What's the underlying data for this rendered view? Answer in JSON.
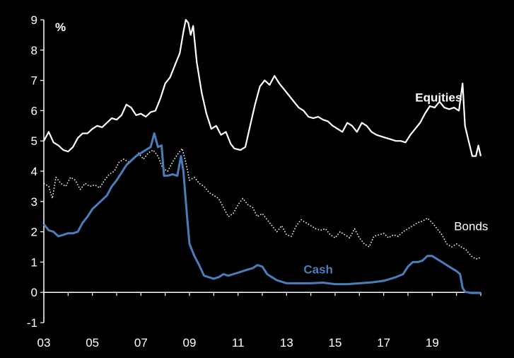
{
  "chart_data": {
    "type": "line",
    "title": "",
    "unit_label": "%",
    "xlabel": "",
    "ylabel": "",
    "xlim": [
      2003,
      2021.0
    ],
    "ylim": [
      -1,
      9
    ],
    "y_ticks": [
      "-1",
      "0",
      "1",
      "2",
      "3",
      "4",
      "5",
      "6",
      "7",
      "8",
      "9"
    ],
    "x_ticks": [
      {
        "year": 2003,
        "label": "03"
      },
      {
        "year": 2005,
        "label": "05"
      },
      {
        "year": 2007,
        "label": "07"
      },
      {
        "year": 2009,
        "label": "09"
      },
      {
        "year": 2011,
        "label": "11"
      },
      {
        "year": 2013,
        "label": "13"
      },
      {
        "year": 2015,
        "label": "15"
      },
      {
        "year": 2017,
        "label": "17"
      },
      {
        "year": 2019,
        "label": "19"
      }
    ],
    "grid": false,
    "series": [
      {
        "name": "Equities",
        "color": "#ffffff",
        "style": "solid",
        "points": [
          [
            2003.0,
            5.0
          ],
          [
            2003.2,
            5.3
          ],
          [
            2003.4,
            4.95
          ],
          [
            2003.6,
            4.85
          ],
          [
            2003.8,
            4.7
          ],
          [
            2004.0,
            4.65
          ],
          [
            2004.2,
            4.8
          ],
          [
            2004.4,
            5.1
          ],
          [
            2004.6,
            5.25
          ],
          [
            2004.8,
            5.25
          ],
          [
            2005.0,
            5.4
          ],
          [
            2005.2,
            5.5
          ],
          [
            2005.4,
            5.45
          ],
          [
            2005.6,
            5.6
          ],
          [
            2005.8,
            5.75
          ],
          [
            2006.0,
            5.7
          ],
          [
            2006.2,
            5.85
          ],
          [
            2006.4,
            6.2
          ],
          [
            2006.6,
            6.1
          ],
          [
            2006.8,
            5.85
          ],
          [
            2007.0,
            5.9
          ],
          [
            2007.2,
            5.8
          ],
          [
            2007.4,
            5.95
          ],
          [
            2007.6,
            6.0
          ],
          [
            2007.8,
            6.4
          ],
          [
            2008.0,
            6.9
          ],
          [
            2008.2,
            7.1
          ],
          [
            2008.4,
            7.5
          ],
          [
            2008.6,
            7.9
          ],
          [
            2008.75,
            8.6
          ],
          [
            2008.85,
            9.0
          ],
          [
            2008.95,
            8.9
          ],
          [
            2009.05,
            8.5
          ],
          [
            2009.15,
            8.8
          ],
          [
            2009.3,
            7.6
          ],
          [
            2009.5,
            6.6
          ],
          [
            2009.7,
            5.9
          ],
          [
            2009.9,
            5.4
          ],
          [
            2010.1,
            5.5
          ],
          [
            2010.3,
            5.2
          ],
          [
            2010.5,
            5.3
          ],
          [
            2010.7,
            4.9
          ],
          [
            2010.85,
            4.75
          ],
          [
            2011.1,
            4.7
          ],
          [
            2011.3,
            4.8
          ],
          [
            2011.5,
            5.5
          ],
          [
            2011.7,
            6.2
          ],
          [
            2011.9,
            6.8
          ],
          [
            2012.1,
            7.0
          ],
          [
            2012.3,
            6.85
          ],
          [
            2012.5,
            7.15
          ],
          [
            2012.7,
            6.9
          ],
          [
            2012.9,
            6.7
          ],
          [
            2013.1,
            6.5
          ],
          [
            2013.3,
            6.3
          ],
          [
            2013.5,
            6.1
          ],
          [
            2013.7,
            6.0
          ],
          [
            2013.9,
            5.8
          ],
          [
            2014.1,
            5.75
          ],
          [
            2014.3,
            5.8
          ],
          [
            2014.5,
            5.7
          ],
          [
            2014.7,
            5.65
          ],
          [
            2014.9,
            5.5
          ],
          [
            2015.1,
            5.4
          ],
          [
            2015.3,
            5.3
          ],
          [
            2015.5,
            5.6
          ],
          [
            2015.7,
            5.5
          ],
          [
            2015.9,
            5.3
          ],
          [
            2016.1,
            5.6
          ],
          [
            2016.3,
            5.5
          ],
          [
            2016.5,
            5.3
          ],
          [
            2016.7,
            5.2
          ],
          [
            2016.9,
            5.15
          ],
          [
            2017.1,
            5.1
          ],
          [
            2017.3,
            5.05
          ],
          [
            2017.5,
            5.0
          ],
          [
            2017.7,
            5.0
          ],
          [
            2017.9,
            4.95
          ],
          [
            2018.1,
            5.2
          ],
          [
            2018.3,
            5.4
          ],
          [
            2018.5,
            5.6
          ],
          [
            2018.7,
            5.9
          ],
          [
            2018.9,
            6.15
          ],
          [
            2019.1,
            6.1
          ],
          [
            2019.3,
            6.3
          ],
          [
            2019.5,
            6.1
          ],
          [
            2019.7,
            6.05
          ],
          [
            2019.9,
            6.1
          ],
          [
            2020.1,
            6.0
          ],
          [
            2020.25,
            6.9
          ],
          [
            2020.35,
            5.5
          ],
          [
            2020.5,
            5.0
          ],
          [
            2020.65,
            4.5
          ],
          [
            2020.8,
            4.5
          ],
          [
            2020.9,
            4.85
          ],
          [
            2021.0,
            4.5
          ]
        ]
      },
      {
        "name": "Bonds",
        "color": "#ffffff",
        "style": "dotted",
        "points": [
          [
            2003.0,
            3.6
          ],
          [
            2003.2,
            3.5
          ],
          [
            2003.35,
            3.1
          ],
          [
            2003.5,
            3.8
          ],
          [
            2003.7,
            3.6
          ],
          [
            2003.9,
            3.5
          ],
          [
            2004.1,
            3.8
          ],
          [
            2004.3,
            3.7
          ],
          [
            2004.5,
            3.4
          ],
          [
            2004.7,
            3.6
          ],
          [
            2004.9,
            3.5
          ],
          [
            2005.1,
            3.55
          ],
          [
            2005.3,
            3.45
          ],
          [
            2005.5,
            3.7
          ],
          [
            2005.7,
            3.9
          ],
          [
            2005.9,
            4.0
          ],
          [
            2006.1,
            4.3
          ],
          [
            2006.3,
            4.4
          ],
          [
            2006.5,
            4.3
          ],
          [
            2006.7,
            4.4
          ],
          [
            2006.9,
            4.6
          ],
          [
            2007.1,
            4.4
          ],
          [
            2007.3,
            4.6
          ],
          [
            2007.5,
            4.7
          ],
          [
            2007.7,
            4.5
          ],
          [
            2007.9,
            4.1
          ],
          [
            2008.1,
            4.0
          ],
          [
            2008.3,
            4.3
          ],
          [
            2008.5,
            4.55
          ],
          [
            2008.7,
            4.75
          ],
          [
            2008.85,
            4.3
          ],
          [
            2009.0,
            3.7
          ],
          [
            2009.2,
            3.8
          ],
          [
            2009.4,
            3.6
          ],
          [
            2009.6,
            3.5
          ],
          [
            2009.8,
            3.3
          ],
          [
            2010.0,
            3.2
          ],
          [
            2010.2,
            3.1
          ],
          [
            2010.4,
            2.8
          ],
          [
            2010.6,
            2.5
          ],
          [
            2010.8,
            2.6
          ],
          [
            2011.0,
            2.9
          ],
          [
            2011.2,
            3.1
          ],
          [
            2011.4,
            2.9
          ],
          [
            2011.6,
            2.8
          ],
          [
            2011.8,
            2.5
          ],
          [
            2012.0,
            2.6
          ],
          [
            2012.2,
            2.4
          ],
          [
            2012.4,
            2.2
          ],
          [
            2012.6,
            2.0
          ],
          [
            2012.8,
            2.2
          ],
          [
            2013.0,
            1.9
          ],
          [
            2013.2,
            1.85
          ],
          [
            2013.4,
            2.2
          ],
          [
            2013.6,
            2.4
          ],
          [
            2013.8,
            2.3
          ],
          [
            2014.0,
            2.2
          ],
          [
            2014.2,
            2.1
          ],
          [
            2014.4,
            2.05
          ],
          [
            2014.6,
            2.1
          ],
          [
            2014.8,
            1.9
          ],
          [
            2015.0,
            1.8
          ],
          [
            2015.2,
            2.0
          ],
          [
            2015.4,
            1.9
          ],
          [
            2015.6,
            1.8
          ],
          [
            2015.8,
            2.1
          ],
          [
            2016.0,
            1.8
          ],
          [
            2016.2,
            1.6
          ],
          [
            2016.4,
            1.5
          ],
          [
            2016.6,
            1.85
          ],
          [
            2016.8,
            1.9
          ],
          [
            2017.0,
            1.95
          ],
          [
            2017.2,
            1.8
          ],
          [
            2017.4,
            1.9
          ],
          [
            2017.6,
            1.85
          ],
          [
            2017.8,
            2.0
          ],
          [
            2018.0,
            2.1
          ],
          [
            2018.2,
            2.2
          ],
          [
            2018.4,
            2.3
          ],
          [
            2018.6,
            2.35
          ],
          [
            2018.8,
            2.45
          ],
          [
            2019.0,
            2.3
          ],
          [
            2019.2,
            2.1
          ],
          [
            2019.4,
            1.9
          ],
          [
            2019.6,
            1.6
          ],
          [
            2019.8,
            1.5
          ],
          [
            2020.0,
            1.6
          ],
          [
            2020.2,
            1.5
          ],
          [
            2020.4,
            1.4
          ],
          [
            2020.6,
            1.2
          ],
          [
            2020.8,
            1.1
          ],
          [
            2021.0,
            1.15
          ]
        ]
      },
      {
        "name": "Cash",
        "color": "#4a7ebb",
        "style": "solid",
        "points": [
          [
            2003.0,
            2.25
          ],
          [
            2003.2,
            2.05
          ],
          [
            2003.4,
            2.0
          ],
          [
            2003.6,
            1.85
          ],
          [
            2003.8,
            1.9
          ],
          [
            2004.0,
            1.95
          ],
          [
            2004.2,
            1.95
          ],
          [
            2004.4,
            2.0
          ],
          [
            2004.6,
            2.3
          ],
          [
            2004.8,
            2.5
          ],
          [
            2005.0,
            2.75
          ],
          [
            2005.2,
            2.9
          ],
          [
            2005.4,
            3.05
          ],
          [
            2005.6,
            3.2
          ],
          [
            2005.8,
            3.5
          ],
          [
            2006.0,
            3.7
          ],
          [
            2006.2,
            3.95
          ],
          [
            2006.4,
            4.2
          ],
          [
            2006.6,
            4.35
          ],
          [
            2006.8,
            4.5
          ],
          [
            2007.0,
            4.6
          ],
          [
            2007.2,
            4.7
          ],
          [
            2007.4,
            4.8
          ],
          [
            2007.55,
            5.25
          ],
          [
            2007.7,
            4.8
          ],
          [
            2007.85,
            4.85
          ],
          [
            2007.95,
            3.85
          ],
          [
            2008.1,
            3.85
          ],
          [
            2008.3,
            3.9
          ],
          [
            2008.5,
            3.85
          ],
          [
            2008.65,
            4.5
          ],
          [
            2008.75,
            4.0
          ],
          [
            2008.9,
            2.5
          ],
          [
            2009.0,
            1.6
          ],
          [
            2009.2,
            1.2
          ],
          [
            2009.4,
            0.9
          ],
          [
            2009.6,
            0.55
          ],
          [
            2009.8,
            0.5
          ],
          [
            2010.0,
            0.45
          ],
          [
            2010.2,
            0.5
          ],
          [
            2010.4,
            0.6
          ],
          [
            2010.6,
            0.55
          ],
          [
            2010.8,
            0.6
          ],
          [
            2011.0,
            0.65
          ],
          [
            2011.2,
            0.7
          ],
          [
            2011.4,
            0.75
          ],
          [
            2011.6,
            0.8
          ],
          [
            2011.8,
            0.9
          ],
          [
            2012.0,
            0.85
          ],
          [
            2012.2,
            0.6
          ],
          [
            2012.4,
            0.5
          ],
          [
            2012.6,
            0.4
          ],
          [
            2012.8,
            0.35
          ],
          [
            2013.0,
            0.3
          ],
          [
            2013.5,
            0.3
          ],
          [
            2014.0,
            0.3
          ],
          [
            2014.5,
            0.32
          ],
          [
            2015.0,
            0.27
          ],
          [
            2015.5,
            0.27
          ],
          [
            2016.0,
            0.3
          ],
          [
            2016.5,
            0.33
          ],
          [
            2017.0,
            0.38
          ],
          [
            2017.5,
            0.5
          ],
          [
            2017.8,
            0.6
          ],
          [
            2018.0,
            0.85
          ],
          [
            2018.2,
            1.0
          ],
          [
            2018.4,
            1.0
          ],
          [
            2018.6,
            1.05
          ],
          [
            2018.8,
            1.2
          ],
          [
            2019.0,
            1.2
          ],
          [
            2019.2,
            1.1
          ],
          [
            2019.4,
            1.0
          ],
          [
            2019.6,
            0.9
          ],
          [
            2019.8,
            0.8
          ],
          [
            2020.0,
            0.7
          ],
          [
            2020.15,
            0.6
          ],
          [
            2020.25,
            0.15
          ],
          [
            2020.35,
            0.02
          ],
          [
            2020.6,
            -0.02
          ],
          [
            2021.0,
            -0.02
          ]
        ]
      }
    ],
    "series_labels": [
      {
        "series": "Equities",
        "text": "Equities",
        "color": "#ffffff",
        "bold": true,
        "at": [
          2018.3,
          6.3
        ]
      },
      {
        "series": "Bonds",
        "text": "Bonds",
        "color": "#ffffff",
        "bold": false,
        "at": [
          2019.9,
          2.05
        ]
      },
      {
        "series": "Cash",
        "text": "Cash",
        "color": "#4a7ebb",
        "bold": true,
        "at": [
          2013.7,
          0.62
        ]
      }
    ]
  }
}
